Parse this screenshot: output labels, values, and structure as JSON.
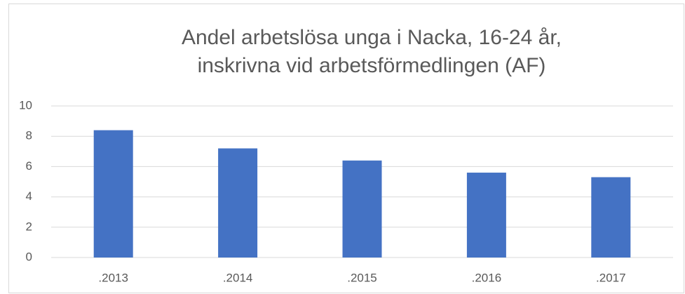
{
  "chart_data": {
    "type": "bar",
    "title": "Andel arbetslösa unga i Nacka, 16-24 år, inskrivna vid arbetsförmedlingen (AF)",
    "categories": [
      ".2013",
      ".2014",
      ".2015",
      ".2016",
      ".2017"
    ],
    "values": [
      8.4,
      7.2,
      6.4,
      5.6,
      5.3
    ],
    "color": "#4472c4",
    "ylim": [
      0,
      10
    ],
    "yticks": [
      0,
      2,
      4,
      6,
      8,
      10
    ],
    "grid": true
  }
}
